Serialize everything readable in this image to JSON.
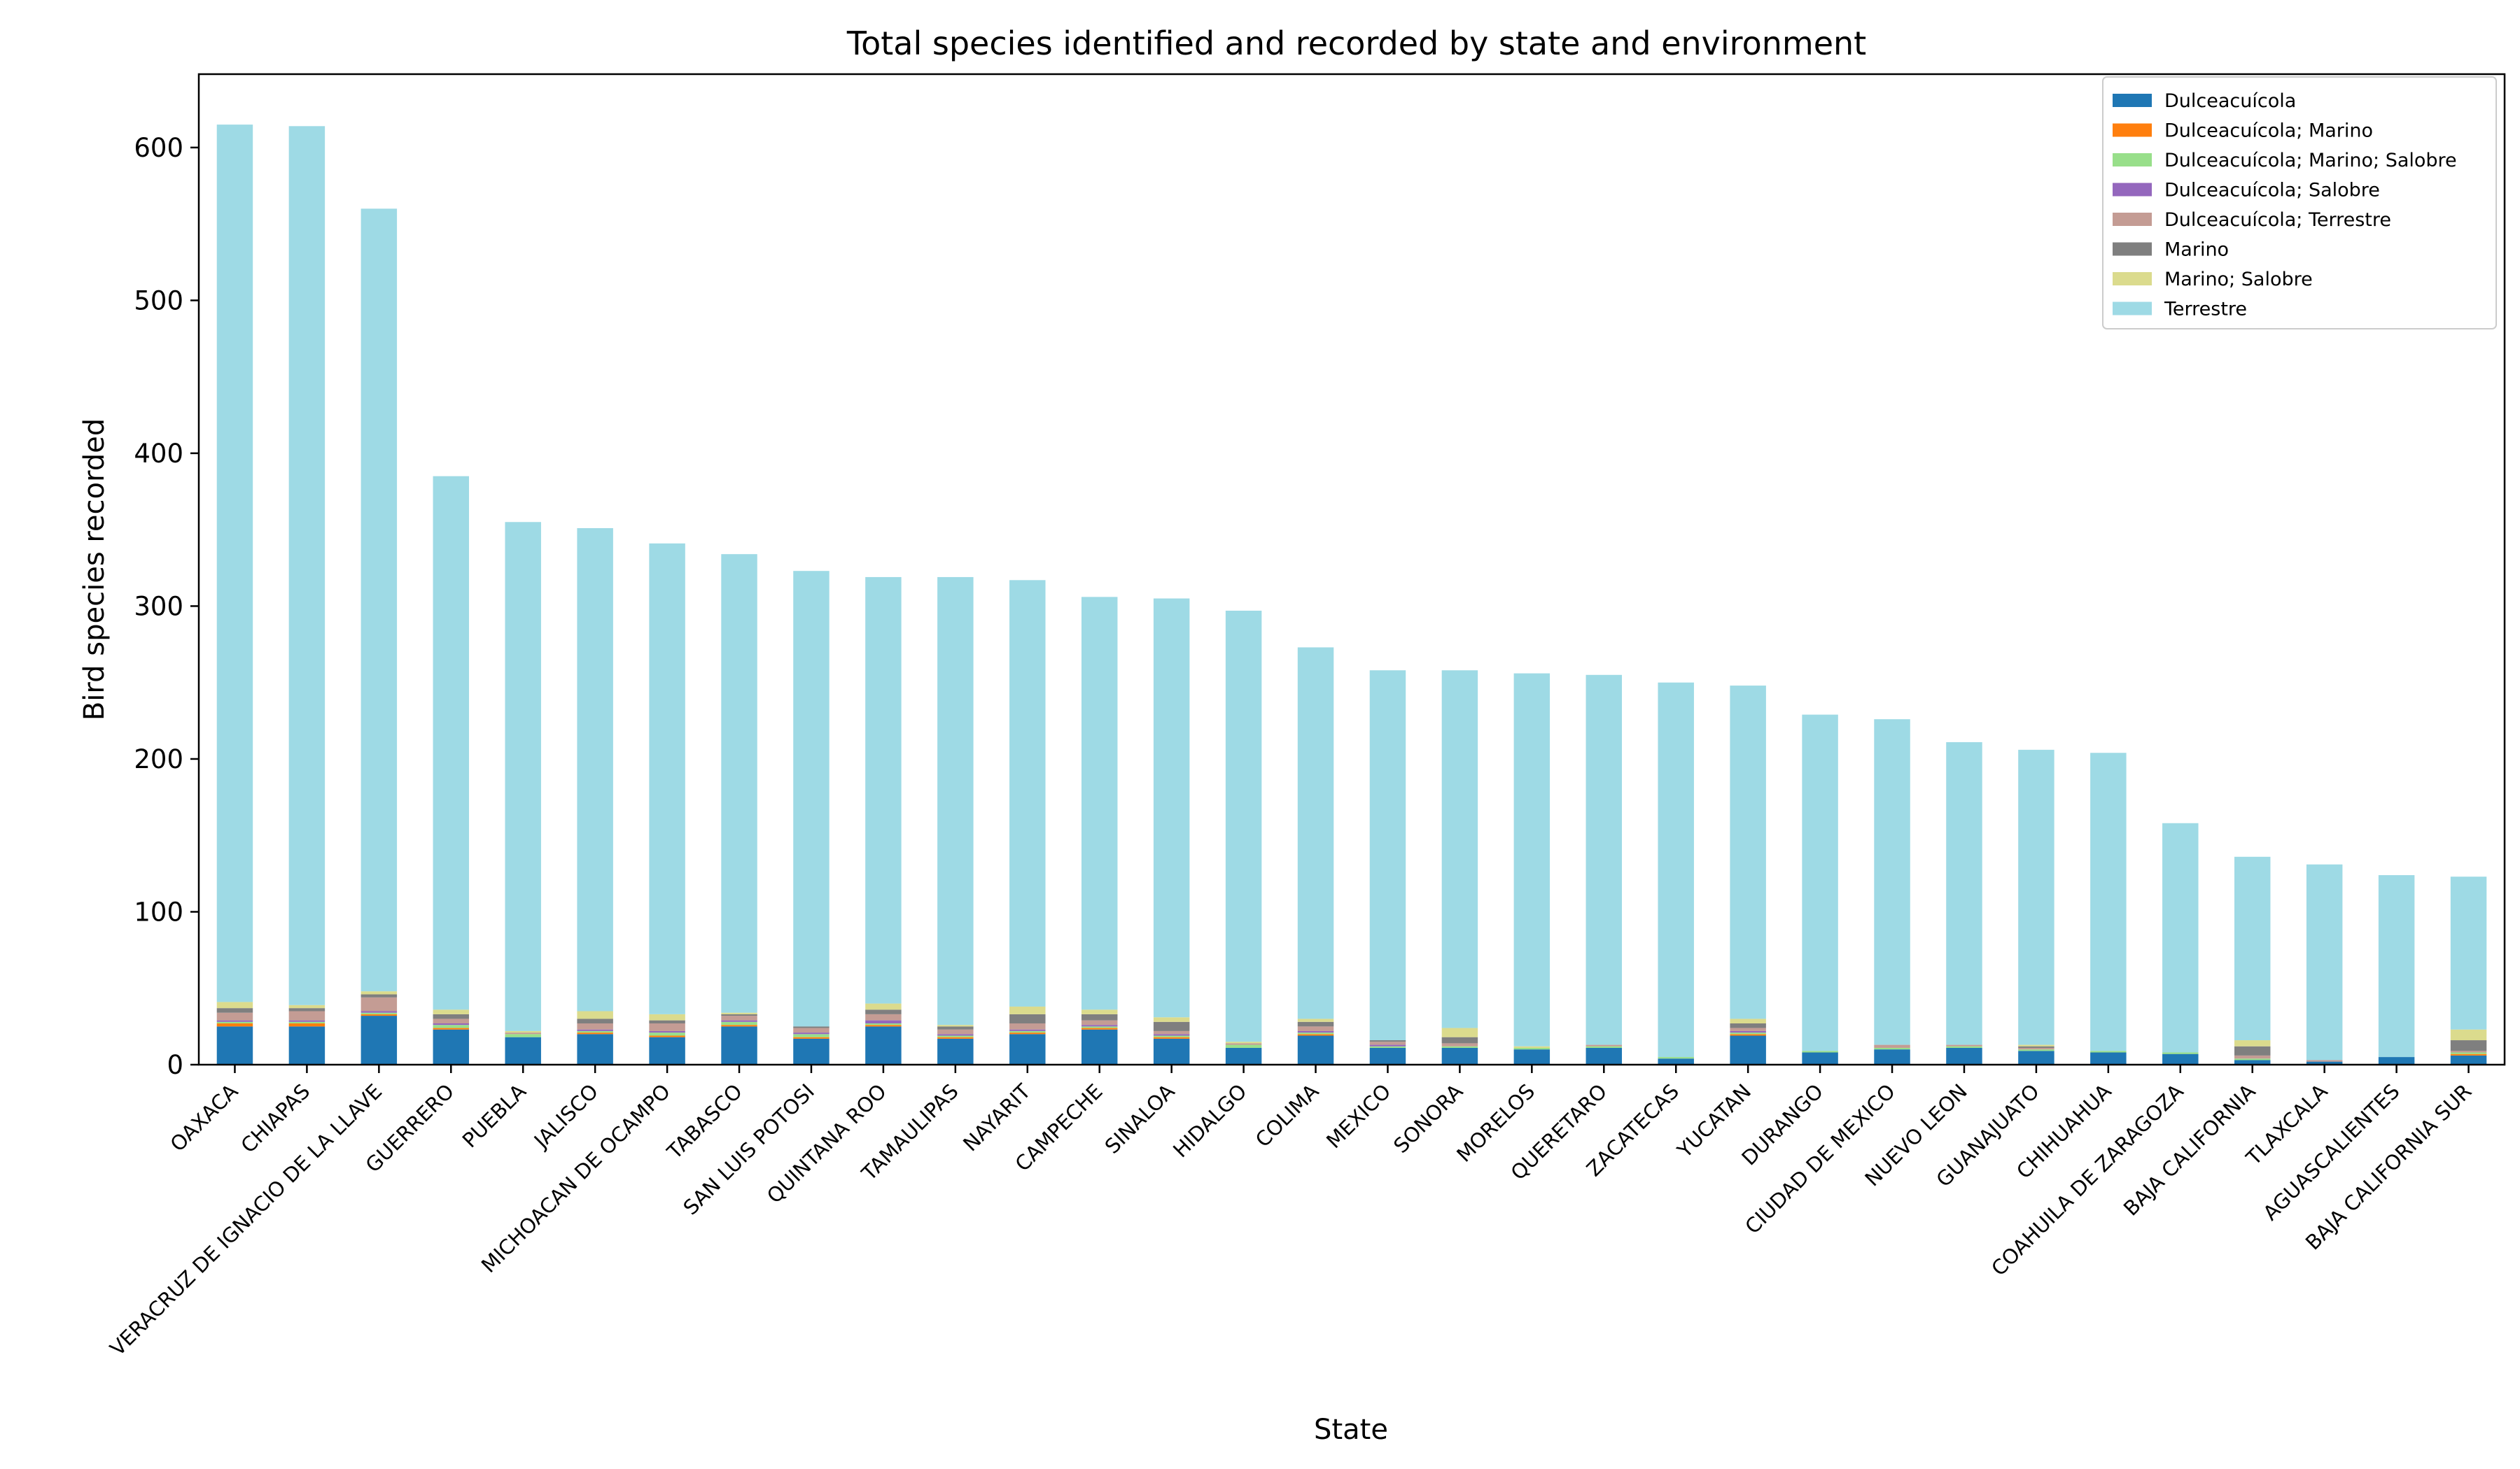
{
  "chart_data": {
    "type": "bar",
    "stacked": true,
    "title": "Total species identified and recorded by state and environment",
    "xlabel": "State",
    "ylabel": "Bird species recorded",
    "ylim": [
      0,
      648
    ],
    "yticks": [
      0,
      100,
      200,
      300,
      400,
      500,
      600
    ],
    "legend_position": "top-right",
    "categories": [
      "OAXACA",
      "CHIAPAS",
      "VERACRUZ DE IGNACIO DE LA LLAVE",
      "GUERRERO",
      "PUEBLA",
      "JALISCO",
      "MICHOACAN DE OCAMPO",
      "TABASCO",
      "SAN LUIS POTOSI",
      "QUINTANA ROO",
      "TAMAULIPAS",
      "NAYARIT",
      "CAMPECHE",
      "SINALOA",
      "HIDALGO",
      "COLIMA",
      "MEXICO",
      "SONORA",
      "MORELOS",
      "QUERETARO",
      "ZACATECAS",
      "YUCATAN",
      "DURANGO",
      "CIUDAD DE MEXICO",
      "NUEVO LEON",
      "GUANAJUATO",
      "CHIHUAHUA",
      "COAHUILA DE ZARAGOZA",
      "BAJA CALIFORNIA",
      "TLAXCALA",
      "AGUASCALIENTES",
      "BAJA CALIFORNIA SUR"
    ],
    "series": [
      {
        "name": "Dulceacuícola",
        "color": "#1f77b4",
        "values": [
          25,
          25,
          32,
          23,
          18,
          20,
          18,
          25,
          17,
          25,
          17,
          20,
          23,
          17,
          11,
          19,
          11,
          11,
          10,
          11,
          4,
          19,
          8,
          10,
          11,
          9,
          8,
          7,
          3,
          2,
          5,
          6
        ]
      },
      {
        "name": "Dulceacuícola; Marino",
        "color": "#ff7f0e",
        "values": [
          2,
          2,
          1,
          1,
          0,
          1,
          1,
          1,
          1,
          1,
          1,
          1,
          1,
          1,
          0,
          1,
          0,
          0,
          0,
          0,
          0,
          1,
          0,
          0,
          0,
          0,
          0,
          0,
          0,
          0,
          0,
          1
        ]
      },
      {
        "name": "Dulceacuícola; Marino; Salobre",
        "color": "#98df8a",
        "values": [
          1,
          1,
          1,
          2,
          2,
          1,
          2,
          2,
          2,
          1,
          1,
          1,
          1,
          1,
          2,
          1,
          1,
          1,
          1,
          1,
          1,
          1,
          1,
          1,
          1,
          1,
          1,
          1,
          1,
          0,
          0,
          1
        ]
      },
      {
        "name": "Dulceacuícola; Salobre",
        "color": "#9467bd",
        "values": [
          1,
          1,
          1,
          1,
          0,
          1,
          1,
          1,
          1,
          2,
          1,
          1,
          1,
          1,
          0,
          1,
          1,
          0,
          0,
          0,
          0,
          1,
          0,
          0,
          0,
          0,
          0,
          0,
          0,
          0,
          0,
          0
        ]
      },
      {
        "name": "Dulceacuícola; Terrestre",
        "color": "#c49c94",
        "values": [
          5,
          6,
          9,
          3,
          1,
          4,
          5,
          3,
          3,
          4,
          3,
          4,
          3,
          2,
          1,
          3,
          2,
          2,
          0,
          1,
          0,
          2,
          0,
          2,
          1,
          1,
          0,
          0,
          2,
          1,
          0,
          1
        ]
      },
      {
        "name": "Marino",
        "color": "#7f7f7f",
        "values": [
          3,
          2,
          2,
          3,
          0,
          3,
          2,
          1,
          1,
          3,
          2,
          6,
          4,
          6,
          0,
          3,
          1,
          4,
          0,
          0,
          0,
          3,
          0,
          0,
          0,
          1,
          0,
          0,
          6,
          0,
          0,
          7
        ]
      },
      {
        "name": "Marino; Salobre",
        "color": "#dbdb8d",
        "values": [
          4,
          2,
          2,
          3,
          1,
          5,
          4,
          1,
          0,
          4,
          1,
          5,
          3,
          3,
          1,
          2,
          0,
          6,
          1,
          0,
          0,
          3,
          0,
          0,
          0,
          1,
          0,
          0,
          4,
          0,
          0,
          7
        ]
      },
      {
        "name": "Terrestre",
        "color": "#9edae5",
        "values": [
          574,
          575,
          512,
          349,
          333,
          316,
          308,
          300,
          298,
          279,
          293,
          279,
          270,
          274,
          282,
          243,
          242,
          234,
          244,
          242,
          245,
          218,
          220,
          213,
          198,
          193,
          195,
          150,
          120,
          128,
          119,
          100
        ]
      }
    ]
  }
}
